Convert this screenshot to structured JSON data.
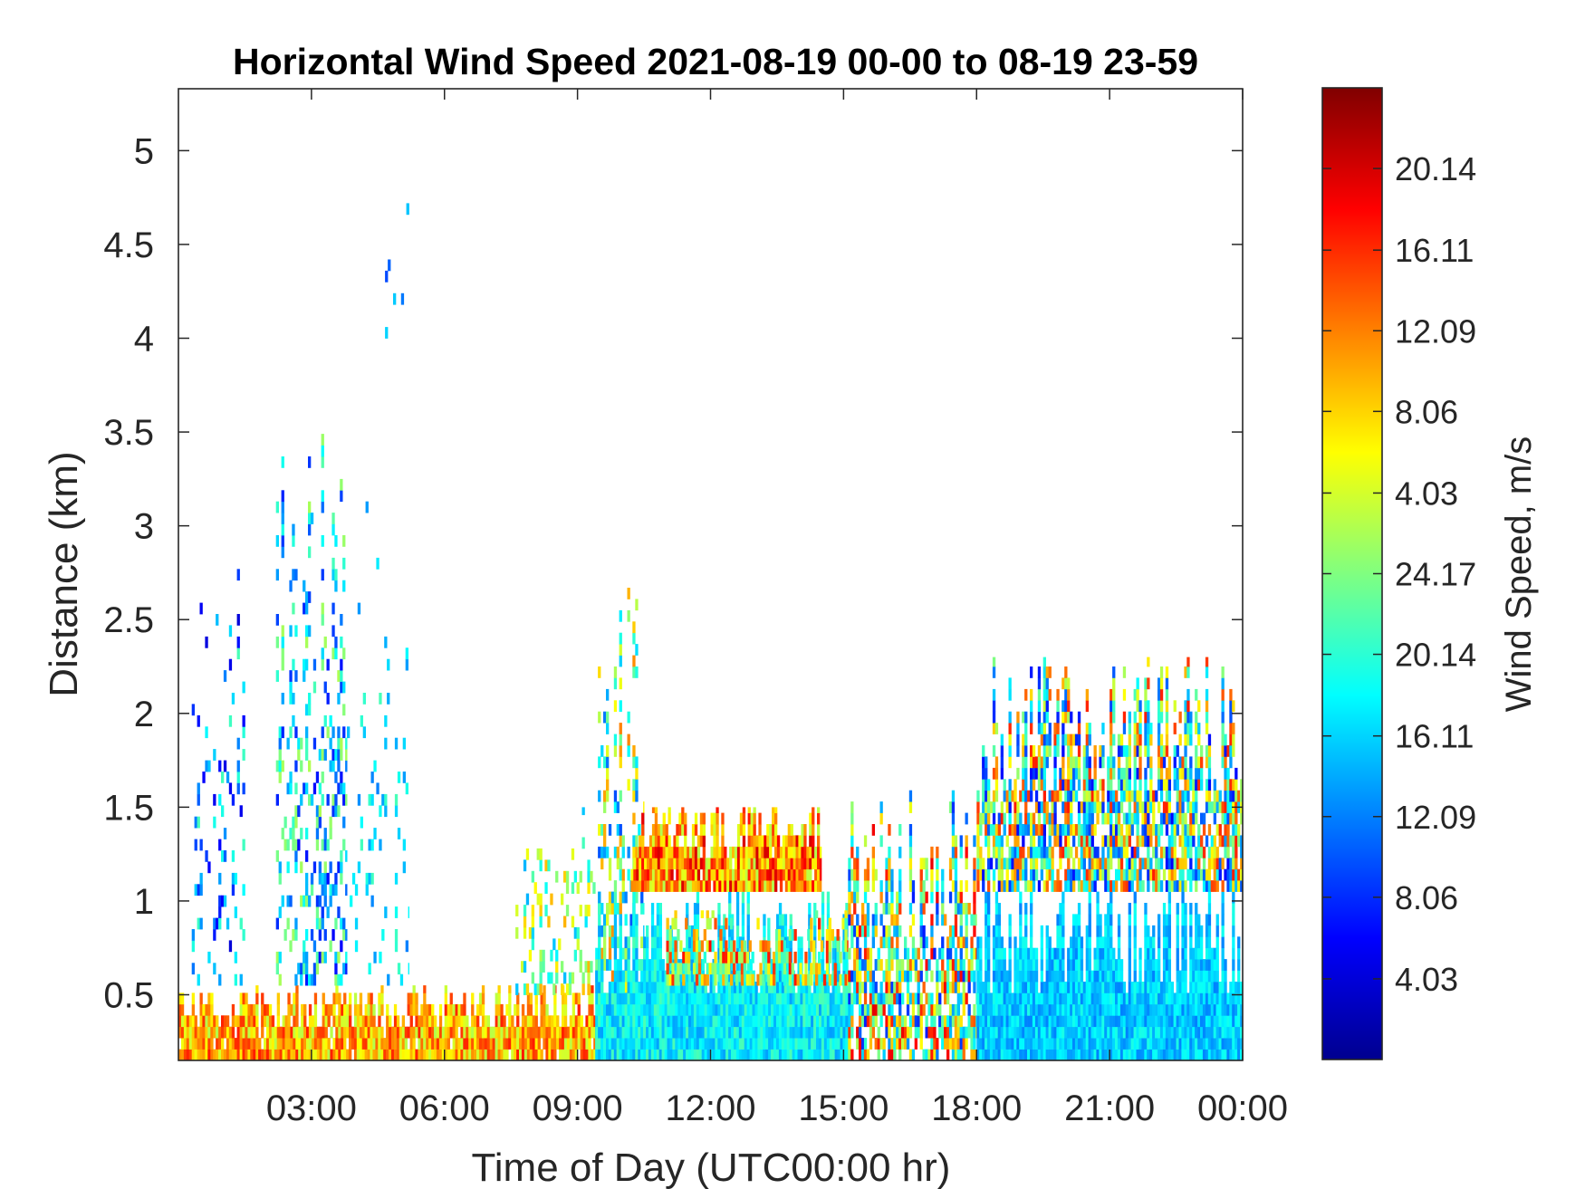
{
  "chart_data": {
    "type": "heatmap",
    "title": "Horizontal Wind Speed 2021-08-19 00-00 to 08-19 23-59",
    "xlabel": "Time of Day (UTC00:00 hr)",
    "ylabel": "Distance (km)",
    "colorbar_label": "Wind Speed, m/s",
    "x_ticks": [
      {
        "hour": 3,
        "label": "03:00"
      },
      {
        "hour": 6,
        "label": "06:00"
      },
      {
        "hour": 9,
        "label": "09:00"
      },
      {
        "hour": 12,
        "label": "12:00"
      },
      {
        "hour": 15,
        "label": "15:00"
      },
      {
        "hour": 18,
        "label": "18:00"
      },
      {
        "hour": 21,
        "label": "21:00"
      },
      {
        "hour": 24,
        "label": "00:00"
      }
    ],
    "y_ticks": [
      {
        "km": 0.5,
        "label": "0.5"
      },
      {
        "km": 1,
        "label": "1"
      },
      {
        "km": 1.5,
        "label": "1.5"
      },
      {
        "km": 2,
        "label": "2"
      },
      {
        "km": 2.5,
        "label": "2.5"
      },
      {
        "km": 3,
        "label": "3"
      },
      {
        "km": 3.5,
        "label": "3.5"
      },
      {
        "km": 4,
        "label": "4"
      },
      {
        "km": 4.5,
        "label": "4.5"
      },
      {
        "km": 5,
        "label": "5"
      }
    ],
    "xlim": [
      0,
      24
    ],
    "ylim": [
      0.15,
      5.33
    ],
    "colorbar_ticks": [
      {
        "frac": 0.083,
        "label": "4.03"
      },
      {
        "frac": 0.167,
        "label": "8.06"
      },
      {
        "frac": 0.25,
        "label": "12.09"
      },
      {
        "frac": 0.333,
        "label": "16.11"
      },
      {
        "frac": 0.417,
        "label": "20.14"
      },
      {
        "frac": 0.5,
        "label": "24.17"
      },
      {
        "frac": 0.583,
        "label": "4.03"
      },
      {
        "frac": 0.667,
        "label": "8.06"
      },
      {
        "frac": 0.75,
        "label": "12.09"
      },
      {
        "frac": 0.833,
        "label": "16.11"
      },
      {
        "frac": 0.917,
        "label": "20.14"
      }
    ],
    "colormap": [
      "#00008f",
      "#0000ff",
      "#0080ff",
      "#00ffff",
      "#80ff80",
      "#ffff00",
      "#ff8000",
      "#ff0000",
      "#800000"
    ],
    "regions": [
      {
        "t0": 0.0,
        "t1": 9.4,
        "h0": 0.15,
        "h1": 0.55,
        "v0": 0.55,
        "v1": 0.85,
        "density": 0.95
      },
      {
        "t0": 0.3,
        "t1": 1.5,
        "h0": 0.55,
        "h1": 2.9,
        "v0": 0.08,
        "v1": 0.45,
        "density": 0.12
      },
      {
        "t0": 2.2,
        "t1": 3.8,
        "h0": 0.55,
        "h1": 3.7,
        "v0": 0.12,
        "v1": 0.55,
        "density": 0.32
      },
      {
        "t0": 3.8,
        "t1": 5.2,
        "h0": 0.55,
        "h1": 3.2,
        "v0": 0.25,
        "v1": 0.45,
        "density": 0.08
      },
      {
        "t0": 4.6,
        "t1": 5.3,
        "h0": 4.0,
        "h1": 5.2,
        "v0": 0.15,
        "v1": 0.35,
        "density": 0.05
      },
      {
        "t0": 7.6,
        "t1": 9.4,
        "h0": 0.5,
        "h1": 1.5,
        "v0": 0.3,
        "v1": 0.7,
        "density": 0.25
      },
      {
        "t0": 9.4,
        "t1": 10.5,
        "h0": 0.15,
        "h1": 2.7,
        "v0": 0.2,
        "v1": 0.75,
        "density": 0.45
      },
      {
        "t0": 9.4,
        "t1": 15.1,
        "h0": 0.15,
        "h1": 1.05,
        "v0": 0.28,
        "v1": 0.45,
        "density": 1.0
      },
      {
        "t0": 10.2,
        "t1": 14.5,
        "h0": 1.05,
        "h1": 1.5,
        "v0": 0.55,
        "v1": 0.92,
        "density": 0.95
      },
      {
        "t0": 11.0,
        "t1": 15.1,
        "h0": 0.55,
        "h1": 0.95,
        "v0": 0.4,
        "v1": 0.88,
        "density": 0.6
      },
      {
        "t0": 15.1,
        "t1": 18.0,
        "h0": 0.15,
        "h1": 1.6,
        "v0": 0.15,
        "v1": 0.9,
        "density": 0.7
      },
      {
        "t0": 18.0,
        "t1": 24.0,
        "h0": 0.15,
        "h1": 1.05,
        "v0": 0.25,
        "v1": 0.4,
        "density": 1.0
      },
      {
        "t0": 18.0,
        "t1": 24.0,
        "h0": 1.05,
        "h1": 2.3,
        "v0": 0.12,
        "v1": 0.85,
        "density": 0.75
      }
    ]
  }
}
